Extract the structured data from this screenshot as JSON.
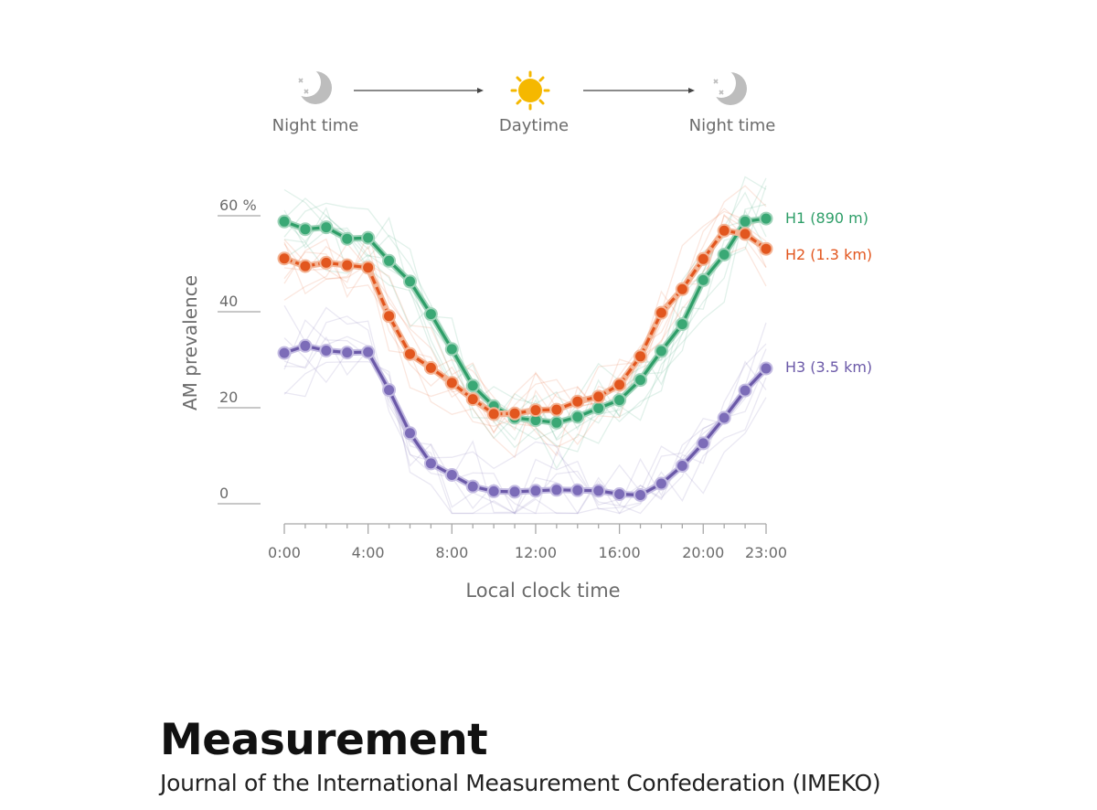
{
  "chart_data": {
    "type": "line",
    "xlabel": "Local clock time",
    "ylabel": "AM prevalence",
    "xlim": [
      0,
      23
    ],
    "ylim": [
      0,
      60
    ],
    "x": [
      0,
      1,
      2,
      3,
      4,
      5,
      6,
      7,
      8,
      9,
      10,
      11,
      12,
      13,
      14,
      15,
      16,
      17,
      18,
      19,
      20,
      21,
      22,
      23
    ],
    "x_ticks": [
      {
        "value": 0,
        "label": "0:00"
      },
      {
        "value": 4,
        "label": "4:00"
      },
      {
        "value": 8,
        "label": "8:00"
      },
      {
        "value": 12,
        "label": "12:00"
      },
      {
        "value": 16,
        "label": "16:00"
      },
      {
        "value": 20,
        "label": "20:00"
      },
      {
        "value": 23,
        "label": "23:00"
      }
    ],
    "y_ticks": [
      {
        "value": 0,
        "label": "0"
      },
      {
        "value": 20,
        "label": "20"
      },
      {
        "value": 40,
        "label": "40"
      },
      {
        "value": 60,
        "label": "60 %"
      }
    ],
    "series": [
      {
        "name": "H1 (890 m)",
        "color": "#2e9e68",
        "fill": "#3aa875",
        "halo": "#9fd3b9",
        "dashed": false,
        "values": [
          58.8,
          57.2,
          57.6,
          55.2,
          55.4,
          50.6,
          46.3,
          39.5,
          32.2,
          24.6,
          20.3,
          17.9,
          17.4,
          16.9,
          18.1,
          19.9,
          21.6,
          25.8,
          31.8,
          37.4,
          46.6,
          51.9,
          58.8,
          59.4
        ]
      },
      {
        "name": "H2 (1.3 km)",
        "color": "#e2561e",
        "fill": "#e2561e",
        "halo": "#f3b596",
        "dashed": true,
        "values": [
          51.1,
          49.5,
          50.2,
          49.7,
          49.2,
          39.1,
          31.2,
          28.3,
          25.2,
          21.8,
          18.7,
          18.8,
          19.5,
          19.6,
          21.3,
          22.3,
          24.8,
          30.7,
          39.8,
          44.7,
          51.0,
          56.9,
          56.2,
          53.1
        ]
      },
      {
        "name": "H3 (3.5 km)",
        "color": "#6b59a8",
        "fill": "#7c6cb8",
        "halo": "#c4bce2",
        "dashed": false,
        "values": [
          31.4,
          32.9,
          31.9,
          31.5,
          31.6,
          23.7,
          14.7,
          8.4,
          6.0,
          3.6,
          2.6,
          2.5,
          2.7,
          2.9,
          2.8,
          2.7,
          2.0,
          1.8,
          4.2,
          7.9,
          12.6,
          17.9,
          23.6,
          28.2
        ]
      }
    ],
    "legend": "right",
    "timeline": {
      "start_label": "Night time",
      "middle_label": "Daytime",
      "end_label": "Night time"
    }
  },
  "journal": {
    "title": "Measurement",
    "subtitle": "Journal of the International Measurement Confederation (IMEKO)"
  },
  "colors": {
    "axis": "#999999",
    "label_text": "#6b6b6b",
    "sun": "#f5b800",
    "moon": "#b9b9b9"
  }
}
